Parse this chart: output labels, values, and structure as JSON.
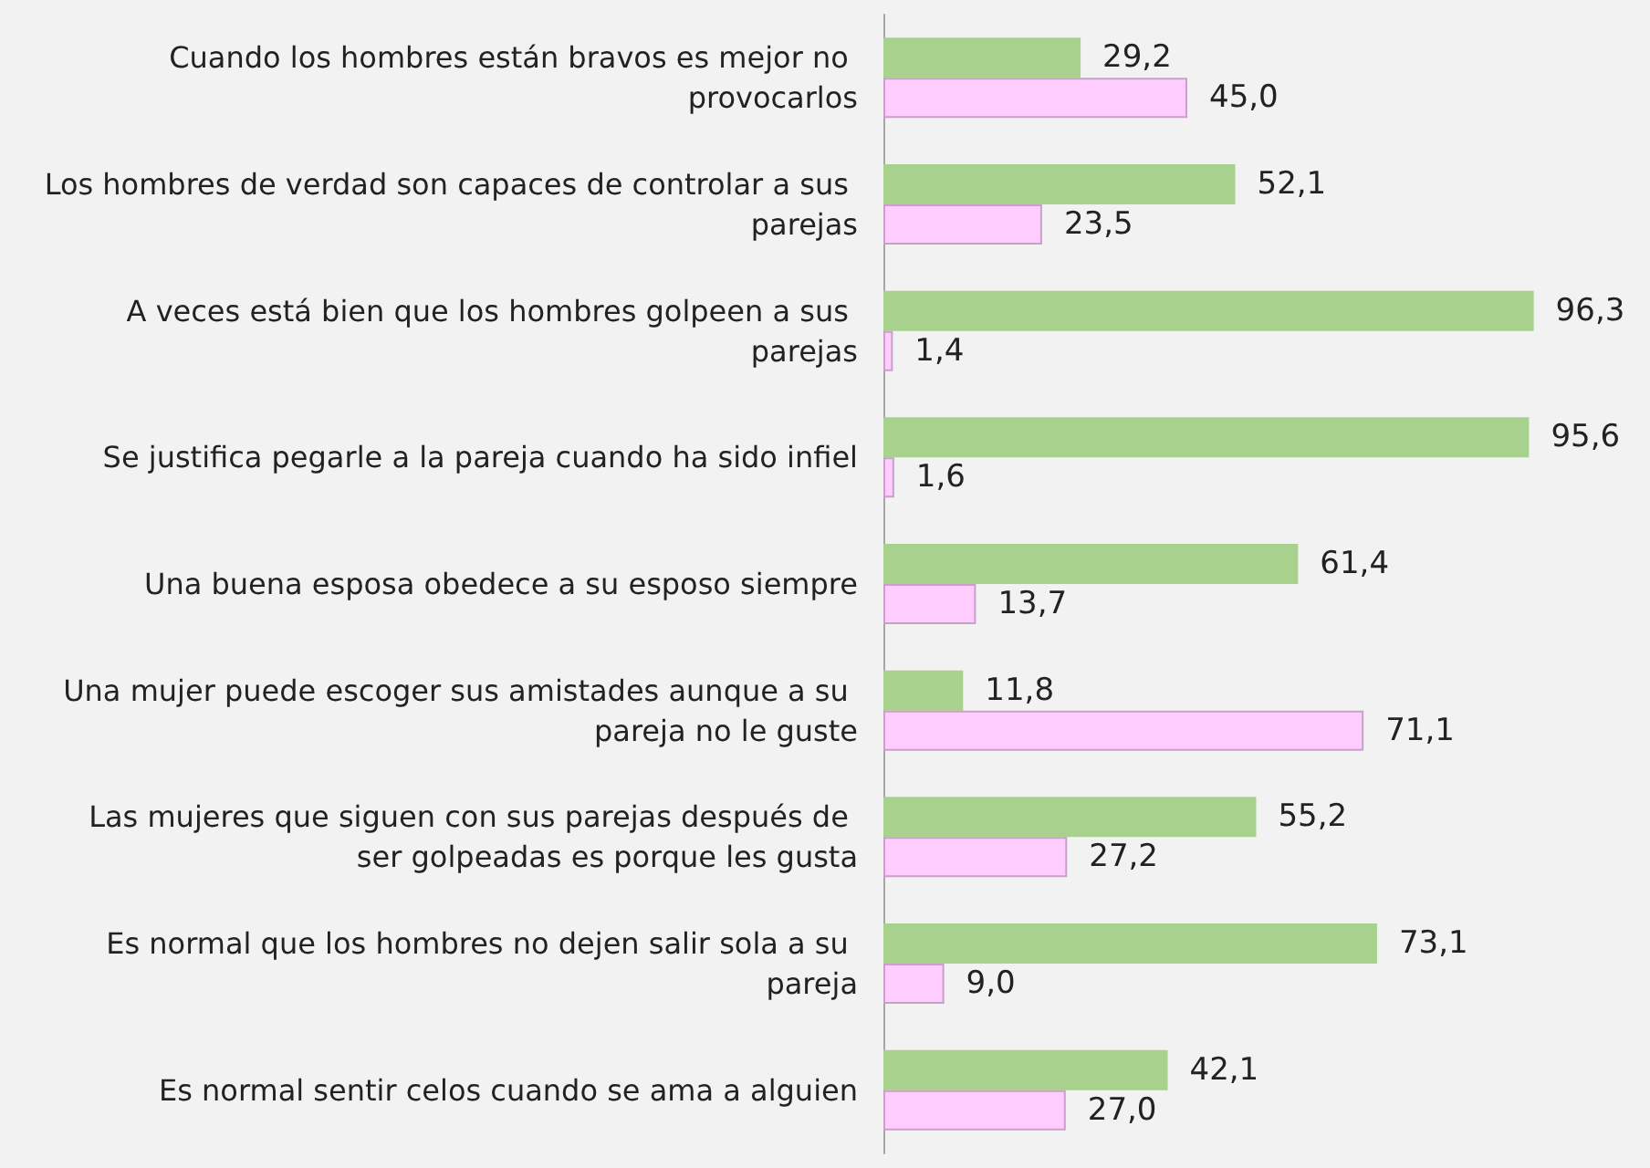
{
  "chart_data": {
    "type": "bar",
    "orientation": "horizontal",
    "categories": [
      "Cuando los hombres están bravos es mejor no provocarlos",
      "Los hombres de verdad son capaces de controlar a sus parejas",
      "A veces está bien que los hombres golpeen a sus parejas",
      "Se justifica pegarle a la pareja cuando ha sido infiel",
      "Una buena esposa obedece a su esposo siempre",
      "Una mujer puede escoger sus amistades aunque a su pareja no le guste",
      "Las mujeres que siguen con sus parejas después de ser golpeadas es porque les gusta",
      "Es normal que los hombres no dejen salir sola a su pareja",
      "Es normal sentir celos cuando se ama a alguien"
    ],
    "series": [
      {
        "color": "#a9d18e",
        "values": [
          29.2,
          52.1,
          96.3,
          95.6,
          61.4,
          11.8,
          55.2,
          73.1,
          42.1
        ],
        "value_labels": [
          "29,2",
          "52,1",
          "96,3",
          "95,6",
          "61,4",
          "11,8",
          "55,2",
          "73,1",
          "42,1"
        ]
      },
      {
        "color": "#ffccff",
        "values": [
          45.0,
          23.5,
          1.4,
          1.6,
          13.7,
          71.1,
          27.2,
          9.0,
          27.0
        ],
        "value_labels": [
          "45,0",
          "23,5",
          "1,4",
          "1,6",
          "13,7",
          "71,1",
          "27,2",
          "9,0",
          "27,0"
        ]
      }
    ]
  }
}
